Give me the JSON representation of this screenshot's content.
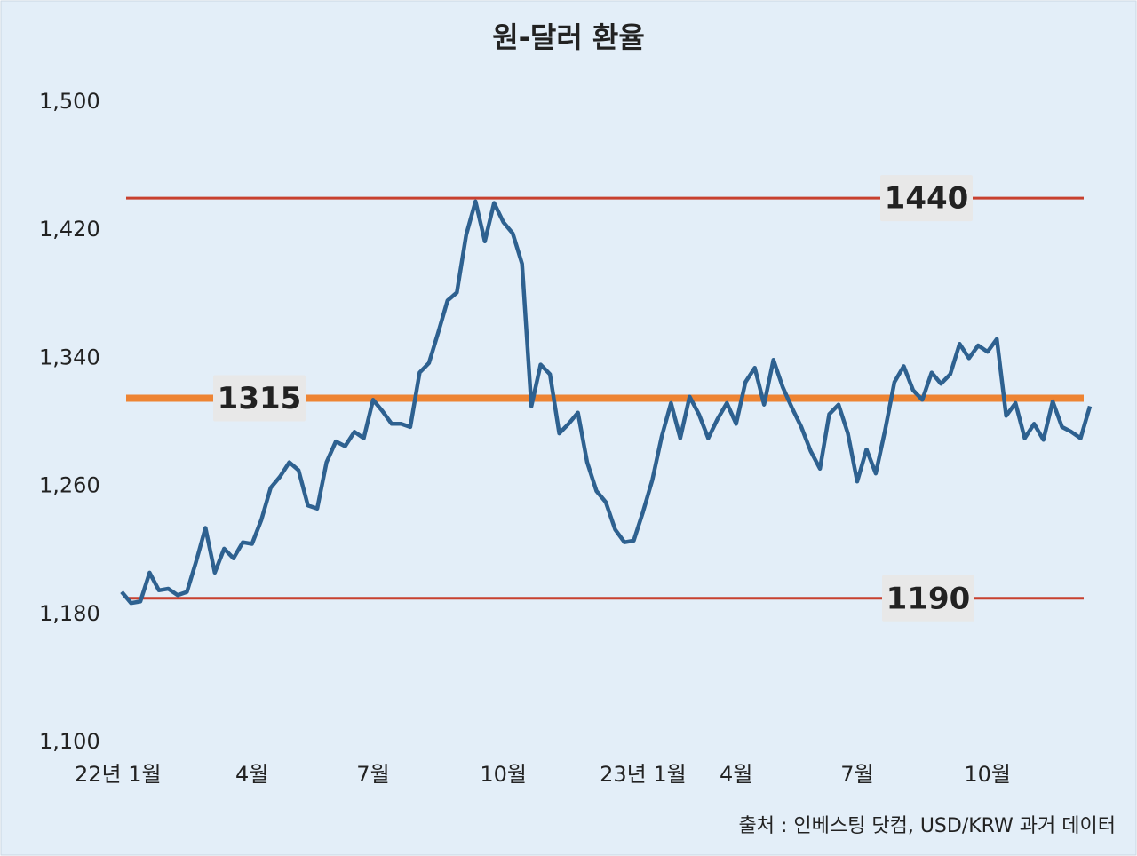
{
  "chart_data": {
    "type": "line",
    "title": "원-달러 환율",
    "source": "출처 : 인베스팅 닷컴, USD/KRW 과거 데이터",
    "categories": [
      "22년 1월",
      null,
      null,
      null,
      null,
      null,
      null,
      null,
      null,
      null,
      null,
      null,
      null,
      null,
      "4월",
      null,
      null,
      null,
      null,
      null,
      null,
      null,
      null,
      null,
      null,
      null,
      null,
      "7월",
      null,
      null,
      null,
      null,
      null,
      null,
      null,
      null,
      null,
      null,
      null,
      null,
      null,
      "10월",
      null,
      null,
      null,
      null,
      null,
      null,
      null,
      null,
      null,
      null,
      null,
      null,
      null,
      null,
      "23년 1월",
      null,
      null,
      null,
      null,
      null,
      null,
      null,
      null,
      null,
      "4월",
      null,
      null,
      null,
      null,
      null,
      null,
      null,
      null,
      null,
      null,
      null,
      null,
      "7월",
      null,
      null,
      null,
      null,
      null,
      null,
      null,
      null,
      null,
      null,
      null,
      null,
      null,
      "10월",
      null,
      null,
      null,
      null,
      null,
      null,
      null,
      null,
      null,
      null,
      null
    ],
    "series": [
      {
        "name": "USD/KRW",
        "color": "#2e6190",
        "values": [
          1194,
          1187,
          1188,
          1206,
          1195,
          1196,
          1192,
          1194,
          1213,
          1234,
          1206,
          1221,
          1215,
          1225,
          1224,
          1239,
          1259,
          1266,
          1275,
          1270,
          1248,
          1246,
          1275,
          1288,
          1285,
          1294,
          1290,
          1314,
          1307,
          1299,
          1299,
          1297,
          1331,
          1337,
          1356,
          1376,
          1381,
          1417,
          1438,
          1413,
          1437,
          1425,
          1418,
          1399,
          1310,
          1336,
          1330,
          1293,
          1299,
          1306,
          1275,
          1257,
          1250,
          1233,
          1225,
          1226,
          1244,
          1264,
          1291,
          1312,
          1290,
          1316,
          1305,
          1290,
          1302,
          1312,
          1299,
          1325,
          1334,
          1311,
          1339,
          1322,
          1309,
          1297,
          1282,
          1271,
          1305,
          1311,
          1293,
          1263,
          1283,
          1268,
          1295,
          1325,
          1335,
          1320,
          1314,
          1331,
          1324,
          1330,
          1349,
          1340,
          1348,
          1344,
          1352,
          1304,
          1312,
          1290,
          1299,
          1289,
          1313,
          1297,
          1294,
          1290,
          1310
        ]
      }
    ],
    "reference_lines": [
      {
        "value": 1440,
        "color": "#c8402f"
      },
      {
        "value": 1315,
        "color": "#ee8433"
      },
      {
        "value": 1190,
        "color": "#c8402f"
      }
    ],
    "ylim": [
      1100,
      1500
    ],
    "yticks": [
      {
        "value": 1100,
        "label": "1,100"
      },
      {
        "value": 1180,
        "label": "1,180"
      },
      {
        "value": 1260,
        "label": "1,260"
      },
      {
        "value": 1340,
        "label": "1,340"
      },
      {
        "value": 1420,
        "label": "1,420"
      },
      {
        "value": 1500,
        "label": "1,500"
      }
    ],
    "grid": false
  }
}
